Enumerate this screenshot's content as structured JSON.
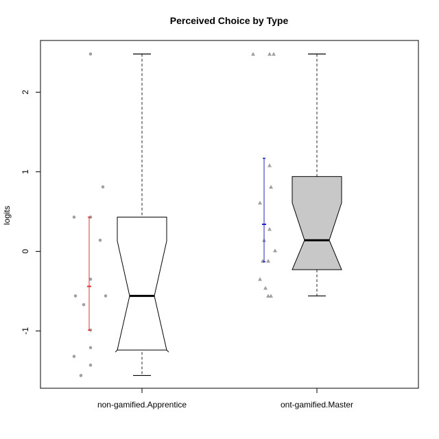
{
  "chart_data": {
    "type": "boxplot",
    "title": "Perceived Choice by Type",
    "ylabel": "logits",
    "xlabel": "",
    "ylim": [
      -1.72,
      2.65
    ],
    "y_ticks": [
      -1,
      0,
      1,
      2
    ],
    "y_tick_labels": [
      "-1",
      "0",
      "1",
      "2"
    ],
    "grid": false,
    "notched": true,
    "categories": [
      "non-gamified.Apprentice",
      "ont-gamified.Master"
    ],
    "boxes": [
      {
        "category": "non-gamified.Apprentice",
        "whisker_low": -1.56,
        "q1": -1.21,
        "median": -0.56,
        "q3": 0.43,
        "whisker_high": 2.48,
        "notch_low": -1.24,
        "notch_high": 0.13,
        "fill": "#ffffff"
      },
      {
        "category": "ont-gamified.Master",
        "whisker_low": -0.56,
        "q1": -0.23,
        "median": 0.14,
        "q3": 0.94,
        "whisker_high": 2.48,
        "notch_low": -0.23,
        "notch_high": 0.61,
        "fill": "#c8c8c8"
      }
    ],
    "points": [
      {
        "category": "non-gamified.Apprentice",
        "marker": "circle",
        "color": "#a0a0a0",
        "values": [
          2.48,
          0.81,
          0.43,
          0.43,
          0.14,
          -0.35,
          -0.56,
          -0.56,
          -0.67,
          -0.99,
          -1.21,
          -1.32,
          -1.43,
          -1.56
        ]
      },
      {
        "category": "ont-gamified.Master",
        "marker": "triangle",
        "color": "#a0a0a0",
        "values": [
          2.48,
          2.48,
          2.48,
          1.08,
          0.81,
          0.61,
          0.28,
          0.14,
          0.01,
          -0.12,
          -0.12,
          -0.35,
          -0.46,
          -0.56,
          -0.56
        ]
      }
    ],
    "mean_intervals": [
      {
        "category": "non-gamified.Apprentice",
        "mean": -0.44,
        "low": -0.99,
        "high": 0.43,
        "color": "#e03030"
      },
      {
        "category": "ont-gamified.Master",
        "mean": 0.34,
        "low": -0.13,
        "high": 1.17,
        "color": "#2020c0"
      }
    ]
  }
}
